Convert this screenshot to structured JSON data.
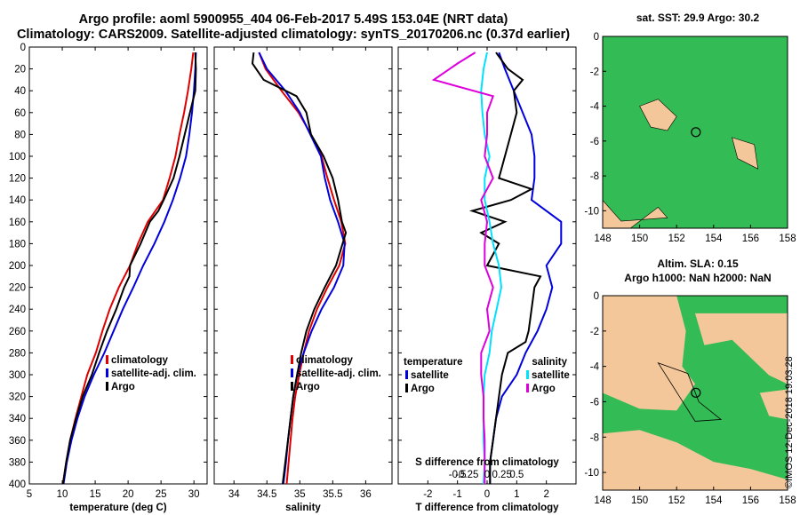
{
  "title_line1": "Argo profile: aoml 5900955_404 06-Feb-2017 5.49S 153.04E (NRT data)",
  "title_line2": "Climatology: CARS2009. Satellite-adjusted climatology: synTS_20170206.nc (0.37d earlier)",
  "map1_title": "sat. SST: 29.9 Argo: 30.2",
  "map2_title_line1": "Altim. SLA: 0.15",
  "map2_title_line2": "Argo h1000: NaN h2000: NaN",
  "side_label": "©IMOS 12-Dec-2018 19:03:28",
  "colors": {
    "climatology": "#dd0000",
    "satellite": "#0000dd",
    "argo": "#000000",
    "sat_salinity": "#00e0ff",
    "salinity_diff": "#dd00dd",
    "land": "#f4c79a",
    "sea": "#33bb55"
  },
  "chart_data": [
    {
      "type": "line",
      "name": "temperature",
      "xlabel": "temperature (deg C)",
      "ylabel": "",
      "xlim": [
        5,
        32
      ],
      "ylim": [
        0,
        400
      ],
      "xticks": [
        5,
        10,
        15,
        20,
        25,
        30
      ],
      "yticks": [
        0,
        20,
        40,
        60,
        80,
        100,
        120,
        140,
        160,
        180,
        200,
        220,
        240,
        260,
        280,
        300,
        320,
        340,
        360,
        380,
        400
      ],
      "legend": [
        "climatology",
        "satellite-adj. clim.",
        "Argo"
      ],
      "series": [
        {
          "name": "climatology",
          "depth": [
            5,
            20,
            40,
            60,
            80,
            100,
            120,
            140,
            160,
            180,
            200,
            220,
            240,
            260,
            280,
            300,
            320,
            340,
            360,
            380,
            400
          ],
          "values": [
            29.9,
            29.6,
            29.1,
            28.5,
            27.8,
            27.2,
            26.3,
            25.3,
            23.0,
            21.5,
            20.3,
            18.6,
            17.2,
            16.1,
            15.1,
            13.8,
            12.9,
            12.0,
            11.2,
            10.6,
            10.1
          ]
        },
        {
          "name": "satellite-adj. clim.",
          "depth": [
            5,
            20,
            40,
            60,
            80,
            100,
            120,
            140,
            160,
            180,
            200,
            220,
            240,
            260,
            280,
            300,
            320,
            340,
            360,
            380,
            400
          ],
          "values": [
            30.3,
            30.2,
            30.0,
            29.7,
            29.3,
            28.8,
            27.9,
            26.8,
            25.5,
            24.0,
            22.3,
            20.8,
            19.2,
            17.8,
            16.4,
            14.8,
            13.4,
            12.3,
            11.4,
            10.7,
            10.2
          ]
        },
        {
          "name": "Argo",
          "depth": [
            5,
            20,
            40,
            60,
            80,
            100,
            120,
            140,
            150,
            160,
            180,
            200,
            210,
            220,
            240,
            260,
            280,
            300,
            320,
            340,
            360,
            380,
            400
          ],
          "values": [
            30.2,
            30.3,
            30.2,
            29.4,
            28.6,
            27.8,
            26.9,
            25.4,
            24.6,
            23.3,
            21.9,
            20.3,
            20.2,
            19.4,
            18.2,
            16.8,
            15.6,
            14.5,
            13.1,
            12.1,
            11.2,
            10.6,
            10.1
          ]
        }
      ]
    },
    {
      "type": "line",
      "name": "salinity",
      "xlabel": "salinity",
      "ylabel": "",
      "xlim": [
        33.7,
        36.4
      ],
      "ylim": [
        0,
        400
      ],
      "xticks": [
        34,
        34.5,
        35,
        35.5,
        36
      ],
      "legend": [
        "climatology",
        "satellite-adj. clim.",
        "Argo"
      ],
      "series": [
        {
          "name": "climatology",
          "depth": [
            5,
            20,
            40,
            60,
            80,
            100,
            120,
            140,
            160,
            180,
            200,
            220,
            240,
            260,
            280,
            300,
            320,
            340,
            360,
            380,
            400
          ],
          "values": [
            34.38,
            34.48,
            34.72,
            34.98,
            35.17,
            35.33,
            35.42,
            35.52,
            35.63,
            35.69,
            35.6,
            35.42,
            35.26,
            35.14,
            35.06,
            34.99,
            34.93,
            34.89,
            34.86,
            34.83,
            34.8
          ]
        },
        {
          "name": "satellite-adj. clim.",
          "depth": [
            5,
            20,
            40,
            60,
            80,
            100,
            120,
            140,
            160,
            180,
            200,
            220,
            240,
            260,
            280,
            300,
            320,
            340,
            360,
            380,
            400
          ],
          "values": [
            34.38,
            34.5,
            34.78,
            35.0,
            35.16,
            35.32,
            35.38,
            35.46,
            35.58,
            35.68,
            35.66,
            35.52,
            35.33,
            35.18,
            35.06,
            34.96,
            34.9,
            34.86,
            34.82,
            34.79,
            34.75
          ]
        },
        {
          "name": "Argo",
          "depth": [
            5,
            15,
            30,
            45,
            60,
            80,
            100,
            120,
            140,
            160,
            170,
            180,
            200,
            220,
            240,
            260,
            280,
            300,
            320,
            340,
            360,
            380,
            400
          ],
          "values": [
            34.3,
            34.28,
            34.45,
            34.95,
            35.1,
            35.17,
            35.36,
            35.5,
            35.58,
            35.64,
            35.7,
            35.65,
            35.55,
            35.38,
            35.22,
            35.1,
            35.02,
            34.96,
            34.9,
            34.86,
            34.82,
            34.78,
            34.74
          ]
        }
      ]
    },
    {
      "type": "line",
      "name": "difference",
      "xlabel": "T difference from climatology",
      "secondary_xlabel": "S difference from climatology",
      "xlim": [
        -3,
        3
      ],
      "ylim": [
        0,
        400
      ],
      "xticks": [
        -2,
        -1,
        0,
        1,
        2
      ],
      "secondary_xticks": [
        "-0.5",
        "-0.25",
        "0",
        "0.25",
        "0.5"
      ],
      "legend_left_title": "temperature",
      "legend_right_title": "salinity",
      "legend_left": [
        "satellite",
        "Argo"
      ],
      "legend_right": [
        "satellite",
        "Argo"
      ],
      "series": [
        {
          "name": "T satellite",
          "depth": [
            5,
            20,
            40,
            60,
            80,
            100,
            120,
            140,
            160,
            180,
            200,
            220,
            240,
            260,
            280,
            300,
            320,
            340,
            360,
            380,
            400
          ],
          "values": [
            0.4,
            0.6,
            0.9,
            1.2,
            1.5,
            1.6,
            1.6,
            1.5,
            2.5,
            2.5,
            2.0,
            2.2,
            2.0,
            1.7,
            1.3,
            1.0,
            0.5,
            0.3,
            0.2,
            0.1,
            0.1
          ]
        },
        {
          "name": "T Argo",
          "depth": [
            5,
            20,
            30,
            40,
            60,
            80,
            100,
            120,
            130,
            140,
            150,
            160,
            170,
            180,
            200,
            210,
            220,
            240,
            260,
            270,
            280,
            300,
            320,
            340,
            360,
            380,
            400
          ],
          "values": [
            0.3,
            0.7,
            1.2,
            0.9,
            1.0,
            0.8,
            0.6,
            0.4,
            1.5,
            0.8,
            -0.5,
            0.6,
            -0.2,
            0.4,
            0.0,
            1.8,
            1.6,
            1.5,
            1.4,
            1.3,
            0.7,
            0.5,
            0.4,
            0.3,
            0.2,
            0.1,
            0.1
          ]
        },
        {
          "name": "S satellite",
          "depth": [
            5,
            20,
            40,
            60,
            80,
            100,
            120,
            140,
            160,
            180,
            200,
            220,
            240,
            260,
            280,
            300,
            320,
            340,
            360,
            380,
            400
          ],
          "values": [
            0.0,
            -0.03,
            -0.05,
            -0.04,
            -0.02,
            0.02,
            -0.02,
            -0.02,
            0.02,
            0.05,
            0.1,
            0.12,
            0.08,
            0.04,
            0.02,
            -0.02,
            -0.03,
            -0.03,
            -0.03,
            -0.02,
            -0.03
          ]
        },
        {
          "name": "S Argo",
          "depth": [
            5,
            15,
            30,
            45,
            60,
            80,
            100,
            120,
            140,
            160,
            180,
            200,
            220,
            240,
            260,
            280,
            300,
            320,
            340,
            360,
            380,
            400
          ],
          "values": [
            -0.1,
            -0.25,
            -0.45,
            0.05,
            0.0,
            0.0,
            -0.02,
            0.05,
            -0.05,
            0.0,
            -0.02,
            -0.02,
            0.05,
            0.0,
            0.02,
            -0.05,
            -0.05,
            -0.03,
            -0.03,
            -0.02,
            -0.02,
            -0.02
          ]
        }
      ]
    },
    {
      "type": "heatmap",
      "name": "sst-map",
      "xlim": [
        148,
        158
      ],
      "ylim": [
        -11,
        0
      ],
      "xticks": [
        148,
        150,
        152,
        154,
        156,
        158
      ],
      "yticks": [
        0,
        -2,
        -4,
        -6,
        -8,
        -10
      ],
      "profile_marker": {
        "lon": 153.04,
        "lat": -5.49
      }
    },
    {
      "type": "heatmap",
      "name": "sla-map",
      "xlim": [
        148,
        158
      ],
      "ylim": [
        -11,
        0
      ],
      "xticks": [
        148,
        150,
        152,
        154,
        156,
        158
      ],
      "yticks": [
        0,
        -2,
        -4,
        -6,
        -8,
        -10
      ],
      "profile_marker": {
        "lon": 153.04,
        "lat": -5.49
      }
    }
  ]
}
